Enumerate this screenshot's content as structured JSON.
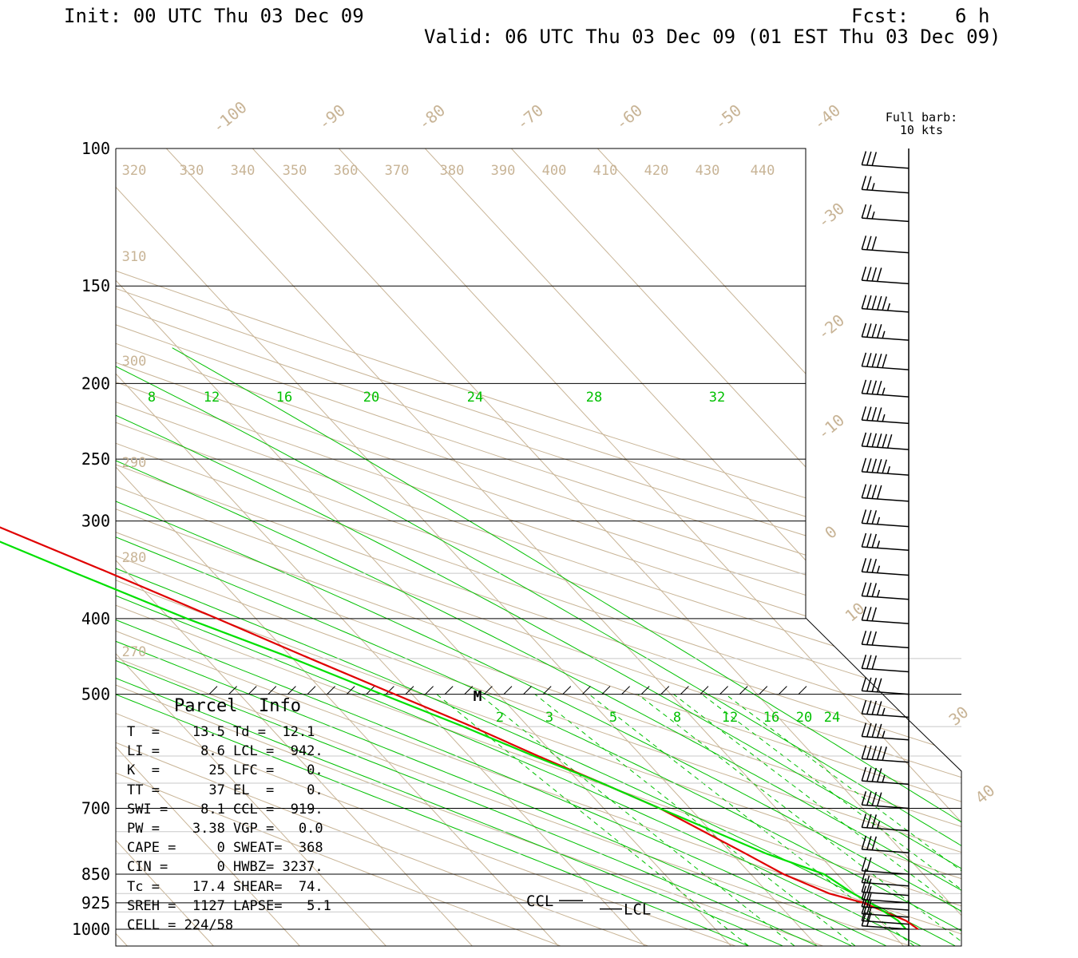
{
  "header": {
    "init": "Init: 00 UTC Thu 03 Dec 09",
    "fcst": "Fcst:    6 h",
    "valid": "Valid: 06 UTC Thu 03 Dec 09 (01 EST Thu 03 Dec 09)"
  },
  "barb_legend": [
    "Full barb:",
    "10 kts"
  ],
  "pressure_labels": [
    "100",
    "150",
    "200",
    "250",
    "300",
    "400",
    "500",
    "700",
    "850",
    "925",
    "1000"
  ],
  "temp_labels": [
    "-100",
    "-90",
    "-80",
    "-70",
    "-60",
    "-50",
    "-40",
    "-30",
    "-20",
    "-10",
    "0",
    "10",
    "30",
    "40"
  ],
  "theta_labels": [
    "320",
    "330",
    "340",
    "350",
    "360",
    "370",
    "380",
    "390",
    "400",
    "410",
    "420",
    "430",
    "440",
    "310",
    "300",
    "290",
    "280",
    "270"
  ],
  "mixing_upper": [
    "8",
    "12",
    "16",
    "20",
    "24",
    "28",
    "32"
  ],
  "mixing_lower": [
    "2",
    "3",
    "5",
    "8",
    "12",
    "16",
    "20",
    "24"
  ],
  "marker": "M",
  "ccl_label": "CCL",
  "lcl_label": "LCL",
  "parcel": {
    "title": "Parcel  Info",
    "rows": [
      "T  =    13.5 Td =  12.1",
      "LI =     8.6 LCL =  942.",
      "K  =      25 LFC =    0.",
      "TT =      37 EL  =    0.",
      "SWI =    8.1 CCL =  919.",
      "PW =    3.38 VGP =   0.0",
      "CAPE =     0 SWEAT=  368",
      "CIN =      0 HWBZ= 3237.",
      "Tc =    17.4 SHEAR=  74.",
      "SREH =  1127 LAPSE=   5.1",
      "CELL = 224/58"
    ]
  },
  "colors": {
    "temperature": "#e00000",
    "dewpoint": "#00e000",
    "mixing_ratio": "#00c000",
    "background_lines": "#c8b496",
    "axes": "#000000"
  },
  "chart_data": {
    "type": "line",
    "diagram": "skew-T log-P",
    "y_scale": "log pressure",
    "ylabel_units": "hPa",
    "y_ticks": [
      100,
      150,
      200,
      250,
      300,
      400,
      500,
      700,
      850,
      925,
      1000
    ],
    "x_units": "°C",
    "series": [
      {
        "name": "Temperature",
        "pressure": [
          1000,
          975,
          925,
          900,
          850,
          800,
          700,
          650,
          600,
          550,
          500,
          450,
          400,
          350,
          300,
          275,
          250,
          225,
          200,
          190,
          175,
          150,
          140,
          130,
          100
        ],
        "value": [
          13.5,
          13.0,
          10.0,
          7.0,
          3.8,
          1.6,
          -3.5,
          -7.5,
          -12.0,
          -16.5,
          -22.0,
          -28.0,
          -34.5,
          -42.0,
          -51.0,
          -56.0,
          -61.0,
          -65.0,
          -70.5,
          -72.0,
          -71.0,
          -70.0,
          -73.0,
          -76.0,
          -80.0
        ]
      },
      {
        "name": "Dewpoint",
        "pressure": [
          1000,
          975,
          925,
          900,
          850,
          800,
          700,
          650,
          600,
          550,
          500,
          450,
          400,
          350,
          300,
          275,
          250,
          225,
          200,
          190,
          175,
          150,
          140,
          130,
          100
        ],
        "value": [
          12.1,
          12.1,
          10.8,
          9.8,
          8.5,
          4.0,
          -3.5,
          -7.5,
          -12.5,
          -17.5,
          -23.5,
          -30.0,
          -38.0,
          -46.0,
          -55.0,
          -60.0,
          -65.0,
          -70.0,
          -75.5,
          -78.0,
          -80.0,
          -83.0,
          -89.0,
          -98.0,
          -92.0
        ]
      }
    ],
    "wind_barbs": [
      {
        "p": 106,
        "kts": 30
      },
      {
        "p": 114,
        "kts": 25
      },
      {
        "p": 124,
        "kts": 25
      },
      {
        "p": 136,
        "kts": 30
      },
      {
        "p": 149,
        "kts": 40
      },
      {
        "p": 162,
        "kts": 55
      },
      {
        "p": 176,
        "kts": 45
      },
      {
        "p": 192,
        "kts": 50
      },
      {
        "p": 208,
        "kts": 45
      },
      {
        "p": 225,
        "kts": 45
      },
      {
        "p": 243,
        "kts": 60
      },
      {
        "p": 262,
        "kts": 55
      },
      {
        "p": 283,
        "kts": 40
      },
      {
        "p": 305,
        "kts": 35
      },
      {
        "p": 327,
        "kts": 35
      },
      {
        "p": 352,
        "kts": 35
      },
      {
        "p": 378,
        "kts": 35
      },
      {
        "p": 406,
        "kts": 30
      },
      {
        "p": 436,
        "kts": 30
      },
      {
        "p": 468,
        "kts": 30
      },
      {
        "p": 500,
        "kts": 40
      },
      {
        "p": 535,
        "kts": 45
      },
      {
        "p": 572,
        "kts": 45
      },
      {
        "p": 611,
        "kts": 50
      },
      {
        "p": 652,
        "kts": 45
      },
      {
        "p": 700,
        "kts": 40
      },
      {
        "p": 748,
        "kts": 35
      },
      {
        "p": 798,
        "kts": 30
      },
      {
        "p": 850,
        "kts": 20
      },
      {
        "p": 880,
        "kts": 15
      },
      {
        "p": 905,
        "kts": 20
      },
      {
        "p": 925,
        "kts": 20
      },
      {
        "p": 945,
        "kts": 20
      },
      {
        "p": 965,
        "kts": 20
      },
      {
        "p": 985,
        "kts": 20
      },
      {
        "p": 1000,
        "kts": 20
      }
    ],
    "grid": true
  }
}
